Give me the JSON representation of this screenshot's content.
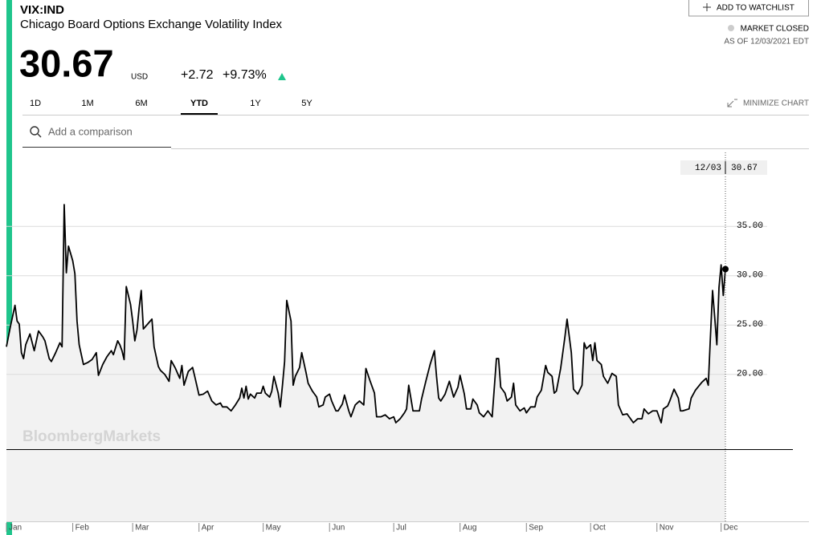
{
  "header": {
    "ticker": "VIX:IND",
    "name": "Chicago Board Options Exchange Volatility Index",
    "price": "30.67",
    "currency": "USD",
    "change": "+2.72",
    "change_pct": "+9.73%"
  },
  "watchlist_button": "ADD TO WATCHLIST",
  "market_status": "MARKET CLOSED",
  "as_of": "AS OF 12/03/2021 EDT",
  "tabs": [
    "1D",
    "1M",
    "6M",
    "YTD",
    "1Y",
    "5Y"
  ],
  "active_tab": "YTD",
  "minimize": "MINIMIZE CHART",
  "search_placeholder": "Add a comparison",
  "watermark": "BloombergMarkets",
  "chart_data": {
    "type": "line",
    "color": "#000000",
    "area_color": "#f2f2f2",
    "x": [
      1,
      3,
      5,
      6,
      7,
      8,
      9,
      10,
      12,
      14,
      16,
      18,
      19,
      21,
      22,
      24,
      26,
      27,
      28,
      29,
      30,
      32,
      33,
      34,
      35,
      37,
      39,
      41,
      43,
      44,
      46,
      48,
      50,
      51,
      53,
      54,
      55,
      56,
      57,
      59,
      60,
      61,
      62,
      63,
      64,
      65,
      67,
      69,
      70,
      72,
      73,
      75,
      77,
      78,
      80,
      82,
      83,
      84,
      86,
      88,
      89,
      91,
      93,
      95,
      97,
      99,
      101,
      102,
      104,
      106,
      108,
      110,
      111,
      112,
      113,
      114,
      115,
      117,
      118,
      120,
      121,
      122,
      124,
      125,
      126,
      128,
      129,
      130,
      131,
      132,
      134,
      135,
      136,
      138,
      139,
      141,
      142,
      144,
      146,
      147,
      149,
      150,
      152,
      153,
      155,
      156,
      158,
      159,
      161,
      162,
      164,
      166,
      168,
      169,
      171,
      173,
      174,
      176,
      178,
      180,
      182,
      183,
      185,
      187,
      188,
      189,
      191,
      192,
      194,
      195,
      197,
      199,
      201,
      202,
      203,
      204,
      206,
      208,
      210,
      212,
      213,
      215,
      216,
      218,
      219,
      221,
      222,
      224,
      226,
      228,
      230,
      231,
      232,
      234,
      235,
      237,
      238,
      239,
      241,
      243,
      244,
      246,
      248,
      249,
      251,
      253,
      254,
      256,
      257,
      258,
      260,
      262,
      263,
      265,
      266,
      268,
      270,
      271,
      272,
      274,
      275,
      276,
      277,
      279,
      280,
      282,
      284,
      286,
      287,
      289,
      291,
      292,
      294,
      296,
      298,
      299,
      301,
      303,
      305,
      307,
      308,
      310,
      311,
      313,
      315,
      316,
      317,
      320,
      321,
      323,
      326,
      328,
      329,
      330,
      331,
      332,
      333,
      334,
      335,
      336,
      337
    ],
    "values": [
      22.8,
      25.0,
      27.0,
      25.4,
      25.1,
      22.2,
      21.6,
      23.0,
      24.1,
      22.4,
      24.4,
      23.8,
      23.4,
      21.6,
      21.3,
      22.2,
      23.2,
      22.8,
      37.2,
      30.3,
      33.0,
      31.5,
      30.2,
      25.4,
      23.0,
      21.0,
      21.2,
      21.5,
      22.2,
      19.9,
      21.0,
      21.8,
      22.4,
      22.0,
      23.4,
      23.0,
      22.4,
      21.5,
      28.9,
      27.1,
      25.4,
      23.4,
      24.5,
      26.7,
      28.5,
      24.6,
      25.1,
      25.6,
      22.8,
      20.8,
      20.4,
      20.0,
      19.3,
      21.4,
      20.6,
      19.6,
      20.9,
      18.9,
      20.3,
      20.7,
      19.8,
      17.9,
      18.0,
      18.3,
      17.3,
      16.9,
      17.1,
      16.7,
      16.7,
      16.3,
      16.9,
      17.6,
      18.6,
      17.6,
      18.8,
      17.5,
      18.0,
      17.6,
      18.1,
      18.1,
      18.8,
      18.1,
      17.7,
      18.3,
      19.8,
      18.1,
      16.7,
      18.9,
      21.3,
      27.5,
      25.4,
      18.9,
      19.8,
      20.7,
      22.2,
      20.2,
      19.1,
      18.3,
      17.7,
      16.7,
      16.9,
      17.7,
      18.0,
      17.3,
      16.3,
      16.3,
      17.0,
      17.9,
      16.3,
      15.7,
      16.9,
      17.3,
      16.9,
      20.6,
      19.3,
      18.1,
      15.7,
      15.7,
      15.9,
      15.5,
      15.7,
      15.1,
      15.5,
      16.1,
      16.5,
      18.9,
      16.3,
      16.3,
      16.3,
      17.5,
      19.3,
      21.0,
      22.4,
      19.8,
      17.6,
      17.3,
      18.0,
      19.3,
      17.7,
      18.7,
      19.9,
      18.0,
      16.5,
      16.5,
      17.5,
      16.9,
      16.1,
      15.7,
      16.3,
      15.7,
      21.6,
      21.6,
      18.7,
      18.1,
      17.3,
      17.7,
      19.1,
      16.9,
      16.3,
      16.6,
      16.1,
      16.7,
      16.7,
      17.7,
      18.4,
      20.9,
      20.2,
      19.8,
      18.1,
      18.3,
      20.6,
      23.8,
      25.6,
      22.2,
      18.5,
      18.0,
      18.9,
      23.2,
      22.6,
      23.0,
      21.4,
      23.2,
      21.4,
      21.0,
      19.8,
      19.1,
      20.1,
      19.8,
      16.9,
      15.9,
      16.0,
      15.7,
      15.1,
      15.5,
      15.5,
      16.5,
      16.0,
      16.3,
      16.3,
      15.1,
      16.5,
      16.8,
      17.3,
      18.5,
      17.6,
      16.3,
      16.3,
      16.5,
      17.6,
      18.4,
      19.2,
      19.6,
      18.9,
      23.8,
      28.5,
      25.8,
      23.0,
      28.8,
      31.1,
      28.0,
      30.67
    ],
    "xlim": [
      1,
      337
    ],
    "ylim": [
      5.1,
      42.5
    ],
    "xticks": [
      {
        "value": 1,
        "label": "Jan"
      },
      {
        "value": 32,
        "label": "Feb"
      },
      {
        "value": 60,
        "label": "Mar"
      },
      {
        "value": 91,
        "label": "Apr"
      },
      {
        "value": 121,
        "label": "May"
      },
      {
        "value": 152,
        "label": "Jun"
      },
      {
        "value": 182,
        "label": "Jul"
      },
      {
        "value": 213,
        "label": "Aug"
      },
      {
        "value": 244,
        "label": "Sep"
      },
      {
        "value": 274,
        "label": "Oct"
      },
      {
        "value": 305,
        "label": "Nov"
      },
      {
        "value": 335,
        "label": "Dec"
      }
    ],
    "yticks": [
      {
        "value": 20,
        "label": "20.00"
      },
      {
        "value": 25,
        "label": "25.00"
      },
      {
        "value": 30,
        "label": "30.00"
      },
      {
        "value": 35,
        "label": "35.00"
      }
    ],
    "grid": true,
    "cursor_date": "12/03"
  }
}
